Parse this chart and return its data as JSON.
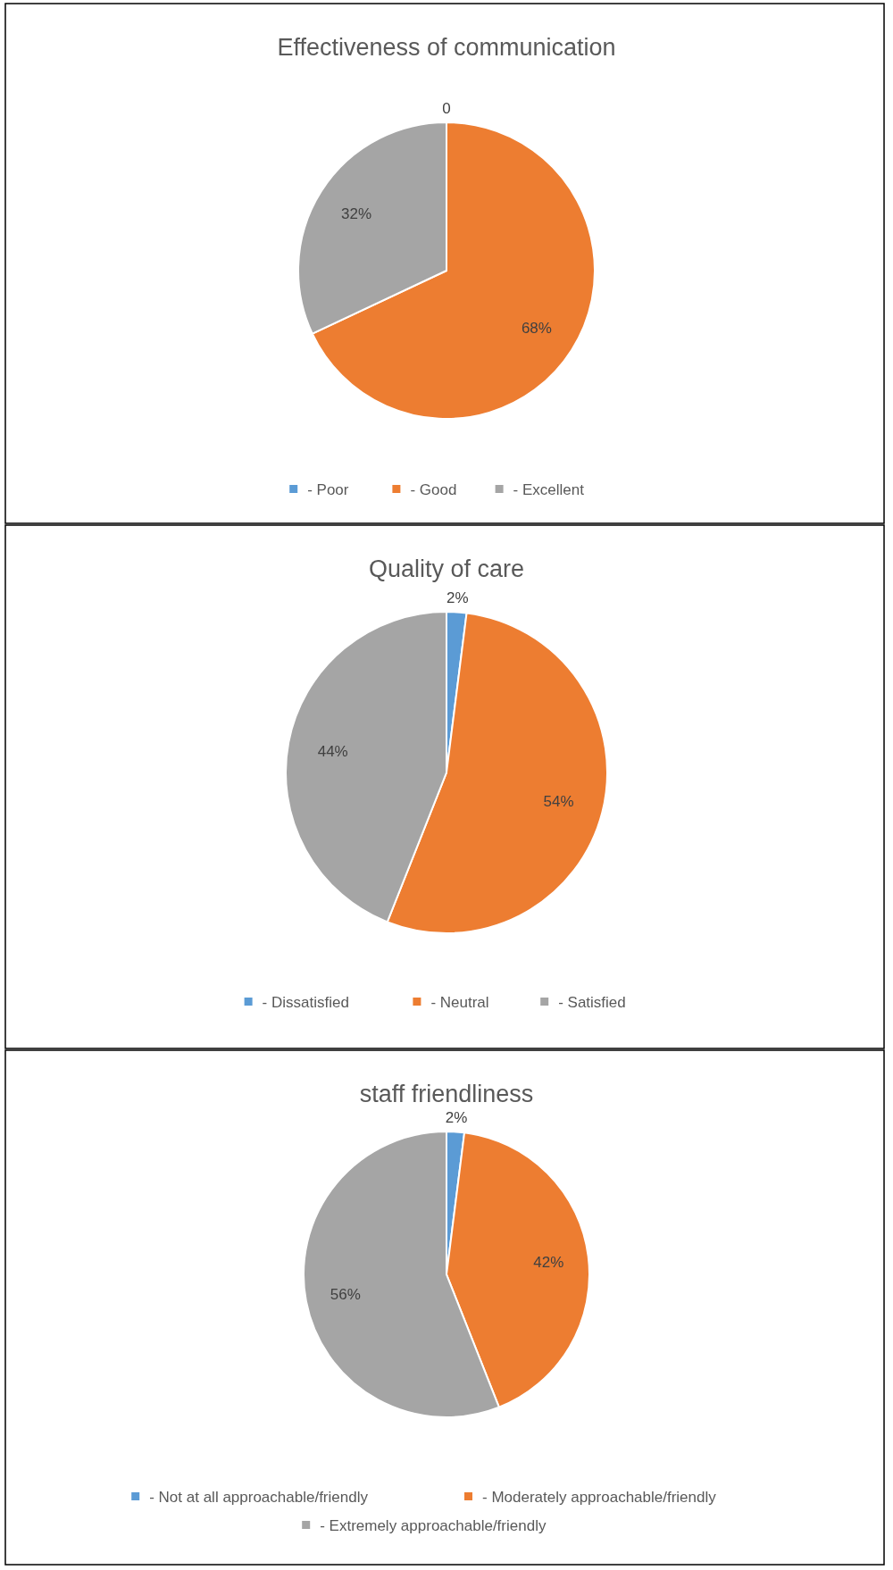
{
  "chart_data": [
    {
      "type": "pie",
      "title": "Effectiveness of communication",
      "categories": [
        "- Poor",
        "- Good",
        "- Excellent"
      ],
      "values": [
        0,
        68,
        32
      ],
      "colors": [
        "#5b9bd5",
        "#ed7d31",
        "#a5a5a5"
      ],
      "value_labels": [
        "0",
        "68%",
        "32%"
      ],
      "legend": "bottom"
    },
    {
      "type": "pie",
      "title": "Quality of care",
      "categories": [
        "- Dissatisfied",
        "- Neutral",
        "- Satisfied"
      ],
      "values": [
        2,
        54,
        44
      ],
      "colors": [
        "#5b9bd5",
        "#ed7d31",
        "#a5a5a5"
      ],
      "value_labels": [
        "2%",
        "54%",
        "44%"
      ],
      "legend": "bottom"
    },
    {
      "type": "pie",
      "title": "staff friendliness",
      "categories": [
        "- Not at all approachable/friendly",
        "- Moderately approachable/friendly",
        "- Extremely approachable/friendly"
      ],
      "values": [
        2,
        42,
        56
      ],
      "colors": [
        "#5b9bd5",
        "#ed7d31",
        "#a5a5a5"
      ],
      "value_labels": [
        "2%",
        "42%",
        "56%"
      ],
      "legend": "bottom"
    }
  ]
}
